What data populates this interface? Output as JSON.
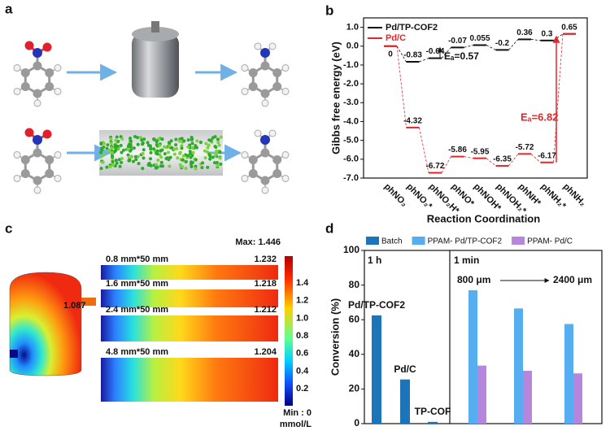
{
  "panel_labels": [
    "a",
    "b",
    "c",
    "d"
  ],
  "panel_b": {
    "type": "energy_profile",
    "categories": [
      "phNO₂",
      "phNO₂*",
      "phNO₂H*",
      "phNO*",
      "phNOH*",
      "phNOH₂*",
      "phNH*",
      "phNH₂*",
      "phNH₂"
    ],
    "series": [
      {
        "name": "Pd/TP-COF2",
        "color": "#111111",
        "values": [
          0,
          -0.83,
          -0.64,
          -0.07,
          0.055,
          -0.2,
          0.36,
          0.3,
          0.65
        ],
        "value_labels": [
          "0",
          "-0.83",
          "-0.64",
          "-0.07",
          "0.055",
          "-0.2",
          "0.36",
          "0.3",
          "0.65"
        ]
      },
      {
        "name": "Pd/C",
        "color": "#e3262b",
        "values": [
          0,
          -4.32,
          -6.72,
          -5.86,
          -5.95,
          -6.35,
          -5.72,
          -6.17,
          0.65
        ],
        "value_labels": [
          null,
          "-4.32",
          "-6.72",
          "-5.86",
          "-5.95",
          "-6.35",
          "-5.72",
          "-6.17",
          null
        ]
      }
    ],
    "ylabel": "Gibbs free energy (eV)",
    "xlabel": "Reaction Coordination",
    "ylim": [
      -7,
      1.5
    ],
    "yticks": [
      {
        "value": 1,
        "label": "1.0"
      },
      {
        "value": 0,
        "label": "0.0"
      },
      {
        "value": -1,
        "label": "-1.0"
      },
      {
        "value": -2,
        "label": "-2.0"
      },
      {
        "value": -3,
        "label": "-3.0"
      },
      {
        "value": -4,
        "label": "-4.0"
      },
      {
        "value": -5,
        "label": "-5.0"
      },
      {
        "value": -6,
        "label": "-6.0"
      },
      {
        "value": -7,
        "label": "-7.0"
      }
    ],
    "annotations": [
      {
        "text": "Eₐ=0.57",
        "color": "#111111"
      },
      {
        "text": "Eₐ=6.82",
        "color": "#e3262b"
      }
    ],
    "legend": "upper left"
  },
  "panel_c": {
    "max_label": "Max: 1.446",
    "min_label": "Min : 0",
    "unit": "mmol/L",
    "reactor_label": "1.087",
    "channels": [
      {
        "label": "0.8 mm*50 mm",
        "value": "1.232"
      },
      {
        "label": "1.6 mm*50 mm",
        "value": "1.218"
      },
      {
        "label": "2.4 mm*50 mm",
        "value": "1.212"
      },
      {
        "label": "4.8 mm*50 mm",
        "value": "1.204"
      }
    ],
    "colorbar_ticks": [
      "1.4",
      "1.2",
      "1.0",
      "0.8",
      "0.6",
      "0.4",
      "0.2"
    ]
  },
  "panel_d": {
    "type": "bar",
    "series": [
      {
        "name": "Batch",
        "color": "#1c74b9",
        "categories": [
          "Pd/TP-COF2",
          "Pd/C",
          "TP-COF"
        ],
        "values": [
          62.5,
          25.5,
          1
        ]
      },
      {
        "name": "PPAM- Pd/TP-COF2",
        "color": "#56aef0",
        "values": [
          77,
          66.5,
          57.5
        ]
      },
      {
        "name": "PPAM- Pd/C",
        "color": "#b686dd",
        "values": [
          33.5,
          30.5,
          29
        ]
      }
    ],
    "group_labels": [
      "1 h",
      "1 min"
    ],
    "annotations": [
      "800 μm",
      "2400 μm"
    ],
    "ylabel": "Conversion (%)",
    "ylim": [
      0,
      100
    ],
    "yticks": [
      0,
      20,
      40,
      60,
      80,
      100
    ],
    "legend": "upper center"
  }
}
